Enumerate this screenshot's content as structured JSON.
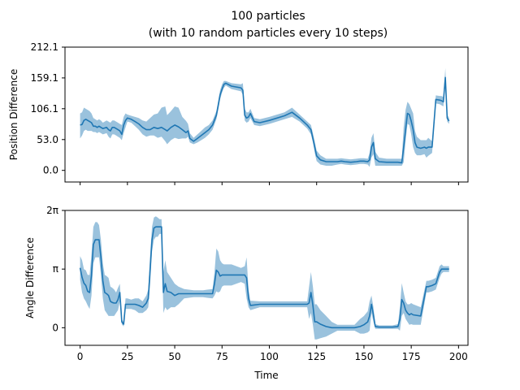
{
  "title_lines": [
    "100 particles",
    "(with 10 random particles every 10 steps)"
  ],
  "colors": {
    "line": "#1f77b4",
    "band": "#1f77b4",
    "band_opacity": 0.45,
    "axes": "#000000"
  },
  "chart_data": [
    {
      "type": "line",
      "name_hint": "top",
      "title": "",
      "xlabel": "",
      "ylabel": "Position Difference",
      "xlim": [
        -8,
        205
      ],
      "ylim": [
        -20,
        212.1
      ],
      "yticks": [
        0.0,
        53.0,
        106.1,
        159.1,
        212.1
      ],
      "ytick_labels": [
        "0.0",
        "53.0",
        "106.1",
        "159.1",
        "212.1"
      ],
      "xticks": [
        0,
        25,
        50,
        75,
        100,
        125,
        150,
        175,
        200
      ],
      "xtick_labels": [
        "",
        "",
        "",
        "",
        "",
        "",
        "",
        "",
        ""
      ],
      "grid": false,
      "series": [
        {
          "x": [
            0,
            1,
            2,
            3,
            4,
            5,
            6,
            7,
            8,
            9,
            10,
            11,
            12,
            13,
            14,
            15,
            16,
            17,
            18,
            19,
            20,
            21,
            22,
            23,
            24,
            25,
            27,
            29,
            31,
            33,
            35,
            37,
            39,
            41,
            43,
            45,
            46,
            48,
            50,
            52,
            54,
            56,
            57,
            58,
            60,
            62,
            64,
            66,
            68,
            70,
            72,
            73,
            74,
            75,
            76,
            77,
            80,
            85,
            86,
            87,
            88,
            89,
            90,
            92,
            95,
            100,
            108,
            112,
            116,
            120,
            122,
            123,
            124,
            125,
            127,
            130,
            133,
            136,
            138,
            140,
            143,
            146,
            148,
            150,
            152,
            153,
            154,
            155,
            156,
            158,
            162,
            165,
            168,
            170,
            171,
            172,
            173,
            174,
            175,
            176,
            177,
            178,
            180,
            182,
            183,
            184,
            186,
            188,
            190,
            191,
            192,
            193,
            194,
            195
          ],
          "y": [
            78,
            79,
            86,
            88,
            86,
            84,
            82,
            76,
            76,
            74,
            76,
            74,
            72,
            73,
            74,
            70,
            68,
            74,
            74,
            72,
            70,
            68,
            62,
            78,
            86,
            90,
            88,
            84,
            80,
            74,
            70,
            70,
            74,
            72,
            74,
            70,
            68,
            74,
            78,
            75,
            70,
            65,
            68,
            55,
            50,
            55,
            60,
            65,
            70,
            78,
            95,
            112,
            130,
            140,
            148,
            150,
            145,
            142,
            138,
            95,
            90,
            92,
            98,
            84,
            82,
            86,
            94,
            100,
            90,
            78,
            70,
            55,
            40,
            25,
            18,
            15,
            15,
            15,
            16,
            15,
            14,
            15,
            16,
            16,
            15,
            18,
            40,
            48,
            20,
            15,
            14,
            14,
            14,
            13,
            40,
            70,
            98,
            96,
            85,
            70,
            48,
            40,
            38,
            40,
            38,
            40,
            40,
            122,
            121,
            120,
            118,
            160,
            90,
            85
          ],
          "lower": [
            55,
            60,
            68,
            70,
            68,
            68,
            68,
            66,
            66,
            64,
            66,
            64,
            62,
            63,
            64,
            58,
            55,
            62,
            62,
            60,
            58,
            56,
            52,
            64,
            74,
            84,
            82,
            76,
            70,
            62,
            58,
            60,
            60,
            56,
            58,
            50,
            45,
            52,
            56,
            54,
            55,
            55,
            58,
            48,
            45,
            48,
            52,
            56,
            62,
            70,
            88,
            104,
            122,
            134,
            142,
            146,
            140,
            136,
            130,
            86,
            82,
            84,
            90,
            78,
            76,
            80,
            88,
            92,
            84,
            72,
            62,
            48,
            30,
            16,
            10,
            8,
            8,
            10,
            11,
            10,
            9,
            10,
            11,
            11,
            10,
            6,
            22,
            28,
            8,
            8,
            8,
            8,
            8,
            8,
            14,
            50,
            80,
            78,
            62,
            40,
            30,
            26,
            26,
            28,
            22,
            25,
            30,
            115,
            114,
            112,
            110,
            148,
            84,
            80
          ],
          "upper": [
            98,
            100,
            108,
            106,
            104,
            102,
            98,
            90,
            88,
            86,
            88,
            86,
            82,
            84,
            86,
            84,
            82,
            86,
            86,
            84,
            82,
            80,
            78,
            92,
            98,
            96,
            94,
            92,
            90,
            86,
            84,
            90,
            96,
            98,
            108,
            110,
            95,
            102,
            110,
            108,
            92,
            85,
            80,
            64,
            56,
            62,
            68,
            74,
            78,
            86,
            102,
            120,
            138,
            148,
            154,
            154,
            150,
            148,
            150,
            106,
            100,
            100,
            106,
            90,
            88,
            92,
            100,
            108,
            96,
            84,
            78,
            64,
            50,
            34,
            26,
            20,
            20,
            20,
            21,
            20,
            19,
            20,
            21,
            21,
            20,
            30,
            56,
            64,
            32,
            22,
            20,
            20,
            20,
            20,
            74,
            104,
            118,
            114,
            106,
            98,
            68,
            58,
            52,
            52,
            52,
            56,
            50,
            129,
            128,
            128,
            126,
            176,
            96,
            90
          ]
        }
      ]
    },
    {
      "type": "line",
      "name_hint": "bottom",
      "title": "",
      "xlabel": "Time",
      "ylabel": "Angle Difference",
      "xlim": [
        -8,
        205
      ],
      "ylim": [
        -0.3,
        2.0
      ],
      "y_units": "multiples of pi",
      "yticks": [
        0,
        1,
        2
      ],
      "ytick_labels": [
        "0",
        "π",
        "2π"
      ],
      "xticks": [
        0,
        25,
        50,
        75,
        100,
        125,
        150,
        175,
        200
      ],
      "xtick_labels": [
        "0",
        "25",
        "50",
        "75",
        "100",
        "125",
        "150",
        "175",
        "200"
      ],
      "grid": false,
      "series": [
        {
          "x": [
            0,
            1,
            2,
            3,
            4,
            5,
            6,
            7,
            8,
            9,
            10,
            11,
            12,
            13,
            14,
            15,
            16,
            17,
            18,
            19,
            20,
            21,
            22,
            23,
            24,
            25,
            27,
            29,
            31,
            33,
            35,
            36,
            37,
            38,
            39,
            40,
            41,
            42,
            43,
            44,
            45,
            46,
            48,
            50,
            52,
            55,
            60,
            65,
            70,
            71,
            72,
            73,
            74,
            75,
            76,
            80,
            85,
            87,
            88,
            89,
            90,
            95,
            100,
            110,
            120,
            121,
            122,
            123,
            124,
            125,
            127,
            130,
            133,
            136,
            140,
            145,
            148,
            150,
            152,
            153,
            154,
            155,
            156,
            158,
            162,
            165,
            168,
            169,
            170,
            171,
            172,
            173,
            174,
            175,
            176,
            180,
            183,
            184,
            186,
            188,
            190,
            191,
            192,
            193,
            195
          ],
          "y": [
            1.02,
            0.86,
            0.76,
            0.72,
            0.62,
            0.6,
            0.9,
            1.42,
            1.5,
            1.5,
            1.5,
            1.2,
            0.8,
            0.6,
            0.58,
            0.55,
            0.45,
            0.43,
            0.42,
            0.42,
            0.48,
            0.6,
            0.1,
            0.06,
            0.4,
            0.4,
            0.4,
            0.4,
            0.38,
            0.35,
            0.42,
            0.5,
            1.0,
            1.5,
            1.7,
            1.72,
            1.72,
            1.72,
            1.72,
            0.6,
            0.75,
            0.62,
            0.6,
            0.55,
            0.58,
            0.58,
            0.58,
            0.58,
            0.58,
            0.75,
            0.98,
            0.95,
            0.88,
            0.9,
            0.9,
            0.9,
            0.9,
            0.9,
            0.85,
            0.5,
            0.38,
            0.4,
            0.4,
            0.4,
            0.4,
            0.42,
            0.6,
            0.38,
            0.1,
            0.1,
            0.06,
            0.02,
            0.0,
            0.0,
            0.0,
            0.0,
            0.02,
            0.05,
            0.1,
            0.2,
            0.4,
            0.22,
            0.02,
            0.01,
            0.01,
            0.01,
            0.02,
            0.15,
            0.48,
            0.42,
            0.3,
            0.25,
            0.22,
            0.24,
            0.22,
            0.2,
            0.7,
            0.7,
            0.72,
            0.75,
            0.95,
            1.0,
            1.0,
            1.0,
            1.0
          ],
          "lower": [
            0.82,
            0.6,
            0.5,
            0.45,
            0.38,
            0.32,
            0.55,
            1.1,
            1.2,
            1.2,
            1.2,
            0.9,
            0.5,
            0.3,
            0.25,
            0.2,
            0.2,
            0.2,
            0.2,
            0.25,
            0.3,
            0.45,
            0.06,
            0.02,
            0.32,
            0.32,
            0.32,
            0.3,
            0.25,
            0.25,
            0.3,
            0.35,
            0.75,
            1.3,
            1.5,
            1.55,
            1.55,
            1.6,
            1.6,
            0.25,
            0.35,
            0.3,
            0.35,
            0.35,
            0.4,
            0.5,
            0.52,
            0.52,
            0.5,
            0.55,
            0.62,
            0.6,
            0.62,
            0.7,
            0.72,
            0.72,
            0.78,
            0.75,
            0.5,
            0.35,
            0.3,
            0.35,
            0.35,
            0.35,
            0.35,
            0.15,
            0.25,
            0.05,
            -0.2,
            -0.2,
            -0.18,
            -0.15,
            -0.1,
            -0.05,
            -0.05,
            -0.05,
            -0.1,
            -0.1,
            -0.08,
            -0.05,
            0.25,
            0.1,
            -0.02,
            -0.02,
            -0.02,
            -0.02,
            -0.02,
            -0.05,
            0.2,
            0.25,
            0.15,
            0.1,
            0.05,
            0.06,
            0.05,
            0.05,
            0.6,
            0.6,
            0.62,
            0.65,
            0.85,
            0.92,
            0.95,
            0.95,
            0.95
          ],
          "upper": [
            1.22,
            1.15,
            1.0,
            0.98,
            0.9,
            0.9,
            1.25,
            1.72,
            1.8,
            1.8,
            1.75,
            1.5,
            1.1,
            0.9,
            0.88,
            0.85,
            0.7,
            0.68,
            0.65,
            0.6,
            0.68,
            0.75,
            0.14,
            0.1,
            0.5,
            0.5,
            0.48,
            0.5,
            0.5,
            0.45,
            0.55,
            0.65,
            1.25,
            1.72,
            1.88,
            1.9,
            1.88,
            1.85,
            1.85,
            0.95,
            1.15,
            0.95,
            0.85,
            0.75,
            0.7,
            0.66,
            0.64,
            0.64,
            0.66,
            0.95,
            1.35,
            1.3,
            1.15,
            1.1,
            1.08,
            1.08,
            1.02,
            1.05,
            1.2,
            0.65,
            0.46,
            0.45,
            0.45,
            0.45,
            0.45,
            0.7,
            0.95,
            0.7,
            0.4,
            0.4,
            0.3,
            0.2,
            0.1,
            0.05,
            0.05,
            0.05,
            0.15,
            0.2,
            0.28,
            0.45,
            0.55,
            0.35,
            0.06,
            0.04,
            0.04,
            0.04,
            0.06,
            0.35,
            0.76,
            0.6,
            0.45,
            0.4,
            0.4,
            0.42,
            0.4,
            0.35,
            0.8,
            0.8,
            0.82,
            0.85,
            1.05,
            1.08,
            1.05,
            1.05,
            1.05
          ]
        }
      ]
    }
  ]
}
